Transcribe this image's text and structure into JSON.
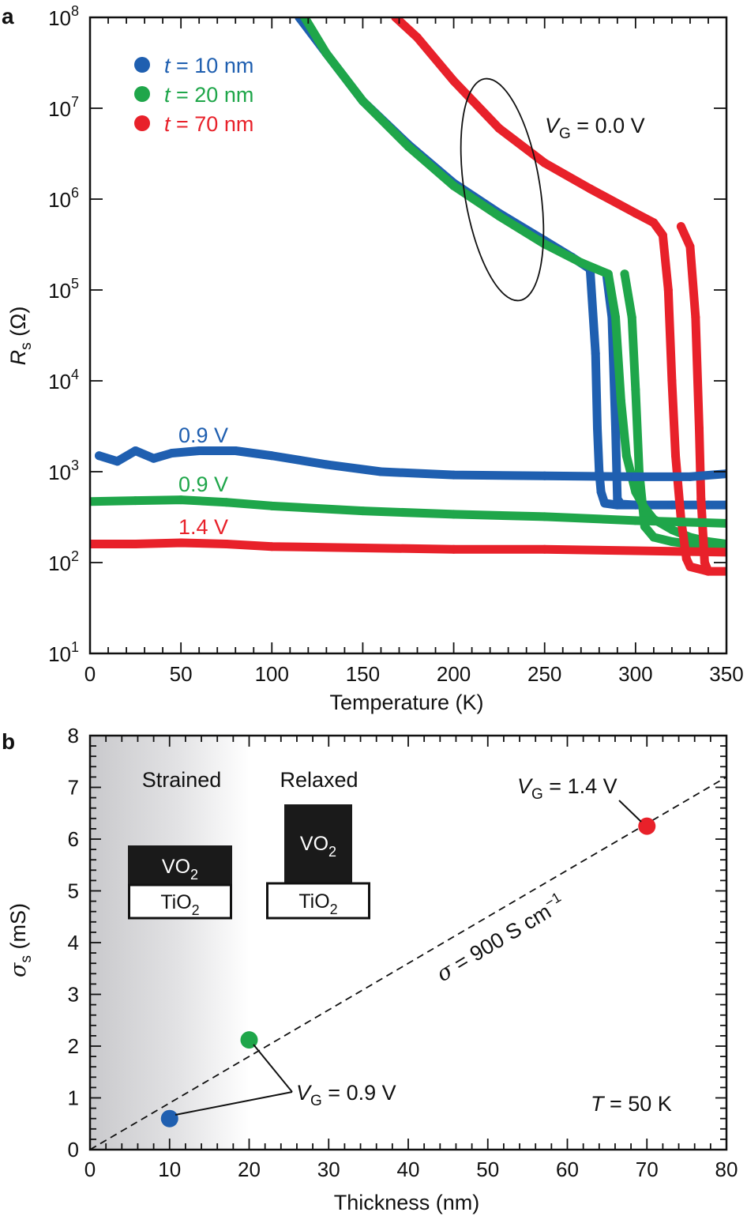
{
  "panel_a": {
    "letter": "a",
    "legend": [
      {
        "var": "t",
        "text": " = 10 nm",
        "color": "#1f5fb0"
      },
      {
        "var": "t",
        "text": " = 20 nm",
        "color": "#1fa64a"
      },
      {
        "var": "t",
        "text": " = 70 nm",
        "color": "#e8212a"
      }
    ],
    "vg_annotation": {
      "var": "V",
      "sub": "G",
      "text": " = 0.0 V"
    },
    "curve_labels": [
      {
        "text": "0.9 V",
        "color": "#1f5fb0"
      },
      {
        "text": "0.9 V",
        "color": "#1fa64a"
      },
      {
        "text": "1.4 V",
        "color": "#e8212a"
      }
    ]
  },
  "panel_b": {
    "letter": "b",
    "region_labels": [
      "Strained",
      "Relaxed"
    ],
    "layer_vo2": {
      "base": "VO",
      "sub": "2"
    },
    "layer_tio2": {
      "base": "TiO",
      "sub": "2"
    },
    "vg_high": {
      "var": "V",
      "sub": "G",
      "text": " = 1.4 V"
    },
    "vg_low": {
      "var": "V",
      "sub": "G",
      "text": " = 0.9 V"
    },
    "fit_label": {
      "sigma": "σ",
      "text": " = 900 S cm",
      "sup": "−1"
    },
    "temp_label": {
      "var": "T",
      "text": " = 50 K"
    }
  },
  "chart_data": [
    {
      "type": "scatter",
      "xlabel": "Temperature (K)",
      "ylabel": {
        "var": "R",
        "sub": "s",
        "unit": " (Ω)"
      },
      "xlim": [
        0,
        350
      ],
      "ylim_log10": [
        1,
        8
      ],
      "y_scale": "log",
      "xticks": [
        0,
        50,
        100,
        150,
        200,
        250,
        300,
        350
      ],
      "yticks_exp": [
        1,
        2,
        3,
        4,
        5,
        6,
        7,
        8
      ],
      "ytick_base": "10",
      "grid": false,
      "legend_position": "top-left",
      "series": [
        {
          "name": "t = 10 nm, VG = 0.0 V",
          "color": "#1f5fb0",
          "x": [
            115,
            130,
            150,
            175,
            200,
            225,
            250,
            265,
            275,
            278,
            279,
            280,
            281,
            283,
            290,
            300,
            320,
            340,
            350,
            340,
            320,
            300,
            292,
            290,
            289,
            287,
            284
          ],
          "y": [
            100000000,
            40000000,
            12000000,
            4000000,
            1500000,
            700000,
            350000,
            230000,
            170000,
            20000,
            3000,
            1000,
            600,
            450,
            430,
            430,
            430,
            430,
            430,
            430,
            430,
            430,
            440,
            500,
            3000,
            50000,
            150000
          ]
        },
        {
          "name": "t = 20 nm, VG = 0.0 V",
          "color": "#1fa64a",
          "x": [
            118,
            130,
            150,
            175,
            200,
            225,
            250,
            270,
            285,
            289,
            292,
            295,
            300,
            305,
            310,
            320,
            330,
            340,
            350,
            330,
            320,
            310,
            305,
            302,
            300,
            298,
            294
          ],
          "y": [
            100000000,
            40000000,
            12000000,
            3800000,
            1400000,
            650000,
            320000,
            200000,
            150000,
            50000,
            6000,
            1500,
            600,
            400,
            300,
            230,
            190,
            170,
            160,
            160,
            170,
            190,
            250,
            1000,
            8000,
            50000,
            150000
          ]
        },
        {
          "name": "t = 70 nm, VG = 0.0 V",
          "color": "#e8212a",
          "x": [
            168,
            180,
            200,
            225,
            250,
            275,
            300,
            310,
            315,
            318,
            320,
            322,
            325,
            328,
            330,
            340,
            350,
            340,
            338,
            336,
            335,
            333,
            330,
            325
          ],
          "y": [
            100000000,
            60000000,
            20000000,
            6000000,
            2500000,
            1300000,
            700000,
            550000,
            400000,
            100000,
            10000,
            1500,
            300,
            110,
            90,
            80,
            80,
            80,
            100,
            500,
            3000,
            50000,
            300000,
            500000
          ]
        },
        {
          "name": "t = 10 nm, VG = 0.9 V",
          "color": "#1f5fb0",
          "x": [
            5,
            15,
            25,
            35,
            45,
            60,
            80,
            100,
            130,
            160,
            200,
            250,
            300,
            330,
            350
          ],
          "y": [
            1500,
            1300,
            1700,
            1400,
            1600,
            1700,
            1700,
            1500,
            1200,
            1000,
            920,
            900,
            880,
            880,
            950
          ]
        },
        {
          "name": "t = 20 nm, VG = 0.9 V",
          "color": "#1fa64a",
          "x": [
            0,
            25,
            50,
            75,
            100,
            150,
            200,
            250,
            300,
            325,
            350
          ],
          "y": [
            470,
            480,
            490,
            460,
            420,
            370,
            340,
            320,
            290,
            280,
            270
          ]
        },
        {
          "name": "t = 70 nm, VG = 1.4 V",
          "color": "#e8212a",
          "x": [
            0,
            25,
            50,
            75,
            100,
            150,
            200,
            250,
            300,
            350
          ],
          "y": [
            160,
            160,
            165,
            160,
            150,
            145,
            140,
            140,
            135,
            130
          ]
        }
      ]
    },
    {
      "type": "scatter",
      "xlabel": "Thickness (nm)",
      "ylabel": {
        "sigma": "σ",
        "sub": "s",
        "unit": " (mS)"
      },
      "xlim": [
        0,
        80
      ],
      "ylim": [
        0,
        8
      ],
      "xticks": [
        0,
        10,
        20,
        30,
        40,
        50,
        60,
        70,
        80
      ],
      "yticks": [
        0,
        1,
        2,
        3,
        4,
        5,
        6,
        7,
        8
      ],
      "grid": false,
      "fit_line": {
        "x": [
          0,
          80
        ],
        "y": [
          0,
          7.2
        ],
        "style": "dashed"
      },
      "points": [
        {
          "x": 10,
          "y": 0.6,
          "color": "#1f5fb0"
        },
        {
          "x": 20,
          "y": 2.12,
          "color": "#1fa64a"
        },
        {
          "x": 70,
          "y": 6.25,
          "color": "#e8212a"
        }
      ],
      "shaded_region": {
        "x": [
          0,
          20
        ]
      }
    }
  ]
}
